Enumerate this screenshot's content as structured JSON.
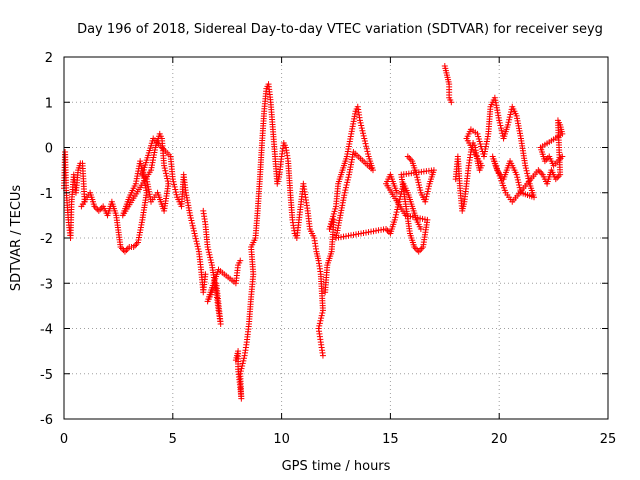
{
  "chart_data": {
    "type": "scatter",
    "title": "Day 196 of 2018, Sidereal Day-to-day VTEC variation (SDTVAR) for receiver seyg",
    "xlabel": "GPS time / hours",
    "ylabel": "SDTVAR / TECUs",
    "xlim": [
      0,
      25
    ],
    "ylim": [
      -6,
      2
    ],
    "xticks": [
      0,
      5,
      10,
      15,
      20,
      25
    ],
    "yticks": [
      -6,
      -5,
      -4,
      -3,
      -2,
      -1,
      0,
      1,
      2
    ],
    "xtick_labels": [
      "0",
      "5",
      "10",
      "15",
      "20",
      "25"
    ],
    "ytick_labels": [
      "-6",
      "-5",
      "-4",
      "-3",
      "-2",
      "-1",
      "0",
      "1",
      "2"
    ],
    "grid": true,
    "marker": "+",
    "color": "#ff0000",
    "series": [
      {
        "name": "seyg",
        "points": [
          [
            0.0,
            -0.9
          ],
          [
            0.05,
            -0.1
          ],
          [
            0.1,
            -0.95
          ],
          [
            0.2,
            -1.6
          ],
          [
            0.3,
            -2.0
          ],
          [
            0.35,
            -1.2
          ],
          [
            0.45,
            -0.6
          ],
          [
            0.55,
            -1.0
          ],
          [
            0.65,
            -0.5
          ],
          [
            0.75,
            -0.35
          ],
          [
            0.85,
            -0.35
          ],
          [
            0.95,
            -1.2
          ],
          [
            0.8,
            -1.3
          ],
          [
            1.2,
            -1.0
          ],
          [
            1.4,
            -1.3
          ],
          [
            1.6,
            -1.4
          ],
          [
            1.8,
            -1.3
          ],
          [
            2.0,
            -1.5
          ],
          [
            2.2,
            -1.2
          ],
          [
            2.4,
            -1.5
          ],
          [
            2.6,
            -2.2
          ],
          [
            2.8,
            -2.3
          ],
          [
            3.0,
            -2.2
          ],
          [
            3.2,
            -2.2
          ],
          [
            3.4,
            -2.1
          ],
          [
            3.6,
            -1.6
          ],
          [
            3.8,
            -1.0
          ],
          [
            3.5,
            -0.3
          ],
          [
            3.3,
            -0.8
          ],
          [
            3.0,
            -1.1
          ],
          [
            2.7,
            -1.5
          ],
          [
            4.0,
            -0.5
          ],
          [
            4.2,
            0.0
          ],
          [
            4.4,
            0.3
          ],
          [
            4.5,
            0.2
          ],
          [
            4.6,
            -0.4
          ],
          [
            4.8,
            -0.8
          ],
          [
            4.6,
            -1.4
          ],
          [
            4.3,
            -1.0
          ],
          [
            4.0,
            -1.2
          ],
          [
            3.8,
            -0.7
          ],
          [
            3.6,
            -0.6
          ],
          [
            4.1,
            0.2
          ],
          [
            4.9,
            -0.2
          ],
          [
            5.0,
            -0.7
          ],
          [
            5.2,
            -1.1
          ],
          [
            5.4,
            -1.3
          ],
          [
            5.5,
            -0.6
          ],
          [
            5.6,
            -1.0
          ],
          [
            5.8,
            -1.5
          ],
          [
            6.0,
            -1.9
          ],
          [
            6.2,
            -2.3
          ],
          [
            6.3,
            -2.7
          ],
          [
            6.4,
            -3.2
          ],
          [
            6.5,
            -2.8
          ],
          [
            6.4,
            -1.4
          ],
          [
            6.5,
            -1.7
          ],
          [
            6.6,
            -2.2
          ],
          [
            6.8,
            -2.6
          ],
          [
            7.0,
            -3.2
          ],
          [
            7.1,
            -3.6
          ],
          [
            7.2,
            -3.9
          ],
          [
            7.0,
            -3.0
          ],
          [
            6.6,
            -3.4
          ],
          [
            6.8,
            -3.1
          ],
          [
            7.1,
            -2.7
          ],
          [
            7.9,
            -3.0
          ],
          [
            8.0,
            -2.6
          ],
          [
            8.1,
            -2.5
          ],
          [
            7.9,
            -4.7
          ],
          [
            8.0,
            -4.5
          ],
          [
            8.0,
            -4.9
          ],
          [
            8.1,
            -5.3
          ],
          [
            8.15,
            -5.55
          ],
          [
            8.1,
            -5.0
          ],
          [
            8.3,
            -4.6
          ],
          [
            8.4,
            -4.3
          ],
          [
            8.5,
            -3.9
          ],
          [
            8.6,
            -3.3
          ],
          [
            8.7,
            -2.8
          ],
          [
            8.6,
            -2.2
          ],
          [
            8.8,
            -2.0
          ],
          [
            8.9,
            -1.4
          ],
          [
            9.0,
            -0.7
          ],
          [
            9.1,
            0.1
          ],
          [
            9.2,
            0.8
          ],
          [
            9.3,
            1.3
          ],
          [
            9.4,
            1.4
          ],
          [
            9.5,
            1.0
          ],
          [
            9.6,
            0.4
          ],
          [
            9.7,
            -0.2
          ],
          [
            9.8,
            -0.8
          ],
          [
            9.9,
            -0.6
          ],
          [
            10.0,
            -0.2
          ],
          [
            10.1,
            0.1
          ],
          [
            10.2,
            0.0
          ],
          [
            10.3,
            -0.3
          ],
          [
            10.4,
            -1.0
          ],
          [
            10.5,
            -1.6
          ],
          [
            10.6,
            -1.9
          ],
          [
            10.7,
            -2.0
          ],
          [
            10.8,
            -1.6
          ],
          [
            10.9,
            -1.2
          ],
          [
            11.0,
            -0.8
          ],
          [
            11.1,
            -1.1
          ],
          [
            11.2,
            -1.4
          ],
          [
            11.3,
            -1.8
          ],
          [
            11.5,
            -2.0
          ],
          [
            11.6,
            -2.3
          ],
          [
            11.7,
            -2.5
          ],
          [
            11.8,
            -2.8
          ],
          [
            11.9,
            -3.6
          ],
          [
            11.7,
            -4.0
          ],
          [
            11.8,
            -4.3
          ],
          [
            11.9,
            -4.6
          ],
          [
            12.0,
            -3.2
          ],
          [
            12.1,
            -2.6
          ],
          [
            12.3,
            -2.3
          ],
          [
            12.4,
            -1.6
          ],
          [
            12.2,
            -1.8
          ],
          [
            12.5,
            -1.3
          ],
          [
            12.6,
            -0.8
          ],
          [
            12.8,
            -0.5
          ],
          [
            13.0,
            -0.2
          ],
          [
            13.2,
            0.3
          ],
          [
            13.4,
            0.8
          ],
          [
            13.5,
            0.9
          ],
          [
            13.6,
            0.6
          ],
          [
            13.8,
            0.2
          ],
          [
            14.0,
            -0.2
          ],
          [
            14.2,
            -0.5
          ],
          [
            13.3,
            -0.1
          ],
          [
            13.1,
            -0.6
          ],
          [
            12.9,
            -1.0
          ],
          [
            12.7,
            -1.5
          ],
          [
            12.5,
            -2.0
          ],
          [
            14.8,
            -1.8
          ],
          [
            15.0,
            -1.9
          ],
          [
            15.2,
            -1.6
          ],
          [
            15.4,
            -1.2
          ],
          [
            15.6,
            -0.8
          ],
          [
            15.8,
            -1.0
          ],
          [
            16.0,
            -1.3
          ],
          [
            16.2,
            -1.6
          ],
          [
            16.4,
            -1.8
          ],
          [
            15.8,
            -0.2
          ],
          [
            16.0,
            -0.3
          ],
          [
            16.2,
            -0.6
          ],
          [
            16.4,
            -1.0
          ],
          [
            16.6,
            -1.2
          ],
          [
            16.8,
            -0.8
          ],
          [
            17.0,
            -0.5
          ],
          [
            15.5,
            -0.6
          ],
          [
            15.9,
            -1.9
          ],
          [
            16.1,
            -2.2
          ],
          [
            16.3,
            -2.3
          ],
          [
            16.5,
            -2.2
          ],
          [
            16.7,
            -1.6
          ],
          [
            15.7,
            -1.5
          ],
          [
            14.8,
            -0.8
          ],
          [
            15.0,
            -0.6
          ],
          [
            15.3,
            -1.0
          ],
          [
            17.5,
            1.8
          ],
          [
            17.6,
            1.6
          ],
          [
            17.7,
            1.4
          ],
          [
            17.7,
            1.1
          ],
          [
            17.8,
            1.0
          ],
          [
            18.0,
            -0.7
          ],
          [
            18.1,
            -0.2
          ],
          [
            18.2,
            -0.9
          ],
          [
            18.3,
            -1.4
          ],
          [
            18.4,
            -1.2
          ],
          [
            18.5,
            -0.8
          ],
          [
            18.6,
            -0.4
          ],
          [
            18.7,
            -0.1
          ],
          [
            18.8,
            0.1
          ],
          [
            18.9,
            0.0
          ],
          [
            19.0,
            -0.3
          ],
          [
            19.1,
            -0.5
          ],
          [
            19.2,
            -0.4
          ],
          [
            18.5,
            0.2
          ],
          [
            18.7,
            0.4
          ],
          [
            19.0,
            0.3
          ],
          [
            19.3,
            -0.2
          ],
          [
            19.5,
            0.3
          ],
          [
            19.6,
            0.9
          ],
          [
            19.8,
            1.1
          ],
          [
            20.0,
            0.6
          ],
          [
            20.2,
            0.2
          ],
          [
            20.4,
            0.5
          ],
          [
            20.6,
            0.9
          ],
          [
            20.8,
            0.7
          ],
          [
            21.0,
            0.2
          ],
          [
            21.2,
            -0.4
          ],
          [
            21.4,
            -0.8
          ],
          [
            21.6,
            -1.1
          ],
          [
            21.0,
            -1.0
          ],
          [
            20.8,
            -0.6
          ],
          [
            20.5,
            -0.3
          ],
          [
            20.2,
            -0.7
          ],
          [
            19.9,
            -0.5
          ],
          [
            19.7,
            -0.2
          ],
          [
            20.3,
            -1.0
          ],
          [
            20.6,
            -1.2
          ],
          [
            21.8,
            -0.5
          ],
          [
            22.0,
            -0.6
          ],
          [
            22.2,
            -0.8
          ],
          [
            22.4,
            -0.5
          ],
          [
            22.6,
            -0.7
          ],
          [
            22.8,
            -0.6
          ],
          [
            22.7,
            0.6
          ],
          [
            22.8,
            0.5
          ],
          [
            22.9,
            0.3
          ],
          [
            21.9,
            0.0
          ],
          [
            22.1,
            -0.3
          ],
          [
            22.3,
            -0.2
          ],
          [
            22.5,
            -0.4
          ],
          [
            22.9,
            -0.2
          ]
        ]
      }
    ]
  }
}
